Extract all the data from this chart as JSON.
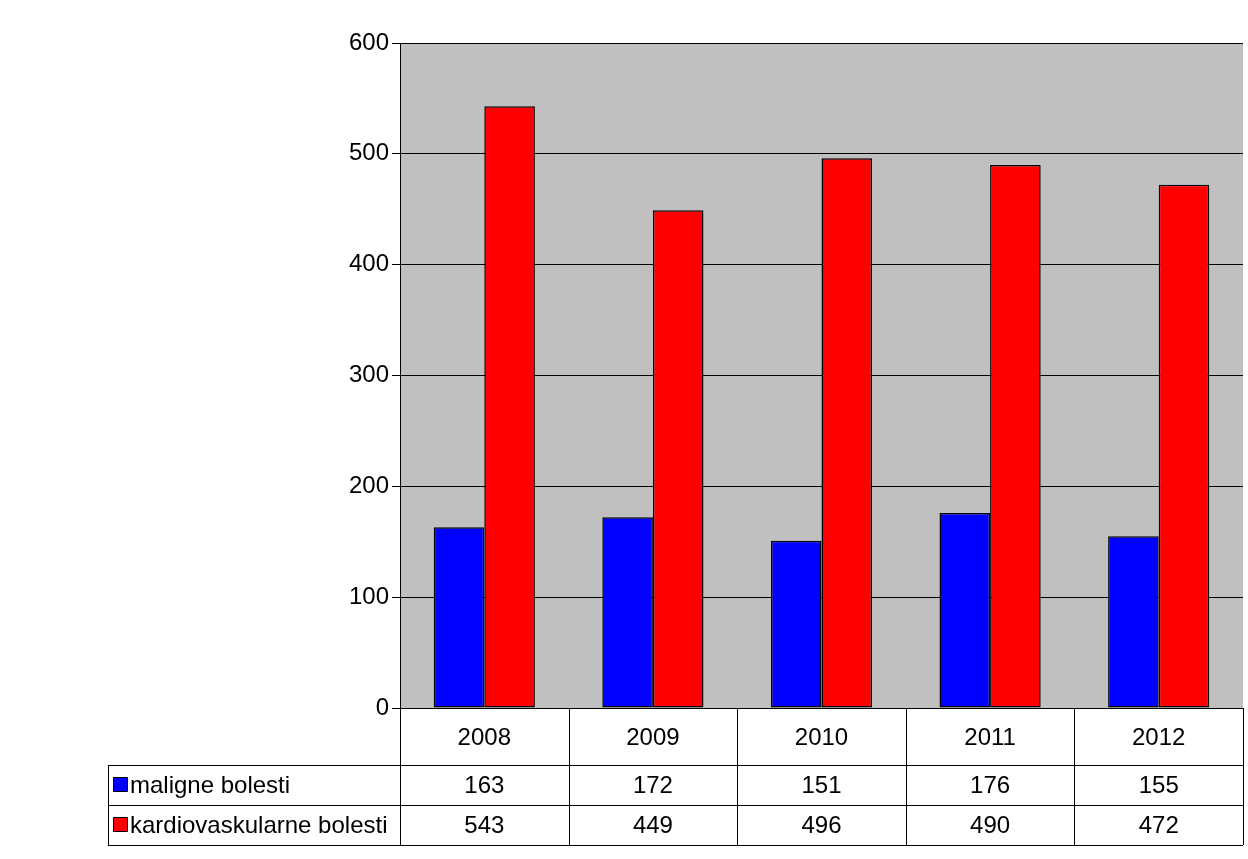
{
  "chart_data": {
    "type": "bar",
    "categories": [
      "2008",
      "2009",
      "2010",
      "2011",
      "2012"
    ],
    "series": [
      {
        "name": "maligne bolesti",
        "color": "#0000ff",
        "values": [
          163,
          172,
          151,
          176,
          155
        ]
      },
      {
        "name": "kardiovaskularne bolesti",
        "color": "#ff0000",
        "values": [
          543,
          449,
          496,
          490,
          472
        ]
      }
    ],
    "ylim": [
      0,
      600
    ],
    "yticks": [
      0,
      100,
      200,
      300,
      400,
      500,
      600
    ],
    "grid": "y",
    "legend": "bottom left",
    "data_labels": true
  }
}
